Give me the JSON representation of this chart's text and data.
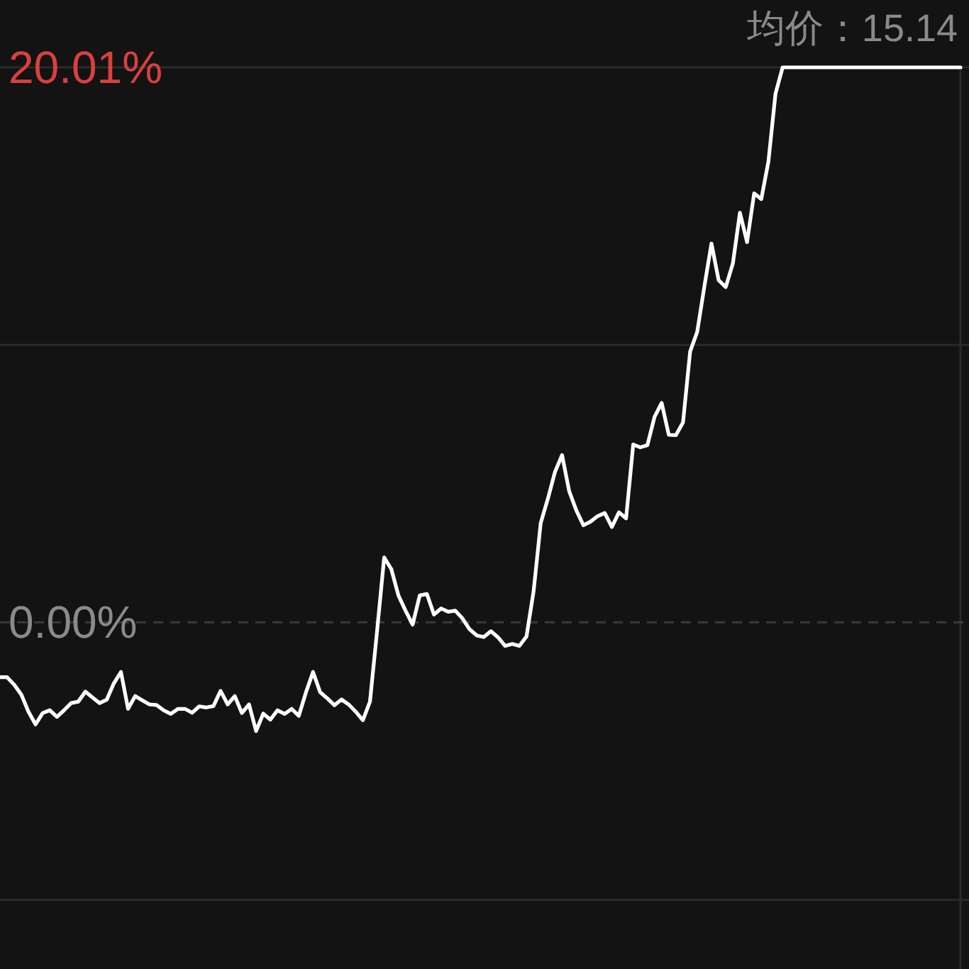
{
  "chart_data": {
    "type": "line",
    "categories": [
      null,
      null,
      null,
      null,
      null,
      null,
      null,
      null,
      null,
      null,
      null,
      null,
      null,
      null,
      null,
      null,
      null,
      null,
      null,
      null,
      null,
      null,
      null,
      null,
      null,
      null,
      null,
      null,
      null,
      null,
      null,
      null,
      null,
      null,
      null,
      null,
      null,
      null,
      null,
      null,
      null,
      null,
      null,
      null,
      null,
      null,
      null,
      null,
      null,
      null,
      null,
      null,
      null,
      null,
      null,
      null,
      null,
      null,
      null,
      null,
      null,
      null,
      null,
      null,
      null,
      null,
      null,
      null,
      null,
      null,
      null,
      null,
      null,
      null,
      null,
      null,
      null,
      null,
      null,
      null,
      null,
      null,
      null,
      null,
      null,
      null,
      null,
      null,
      null,
      null,
      null,
      null,
      null,
      null,
      null,
      null,
      null,
      null,
      null,
      null,
      null,
      null,
      null,
      null,
      null,
      null,
      null,
      null,
      null,
      null,
      null,
      null,
      null,
      null,
      null,
      null,
      null,
      null,
      null,
      null,
      null,
      null,
      null,
      null,
      null,
      null,
      null,
      null,
      null,
      null,
      null,
      null,
      null,
      null,
      null,
      null
    ],
    "series": [
      {
        "color": "#ffffff",
        "values": [
          -1.98,
          -1.98,
          -2.25,
          -2.61,
          -3.22,
          -3.68,
          -3.27,
          -3.17,
          -3.41,
          -3.17,
          -2.91,
          -2.86,
          -2.5,
          -2.71,
          -2.91,
          -2.79,
          -2.2,
          -1.79,
          -3.12,
          -2.66,
          -2.81,
          -2.96,
          -2.98,
          -3.17,
          -3.3,
          -3.12,
          -3.12,
          -3.26,
          -3.03,
          -3.07,
          -3.02,
          -2.47,
          -2.96,
          -2.66,
          -3.27,
          -2.96,
          -3.92,
          -3.29,
          -3.51,
          -3.17,
          -3.3,
          -3.12,
          -3.37,
          -2.53,
          -1.79,
          -2.52,
          -2.74,
          -2.99,
          -2.78,
          -2.96,
          -3.22,
          -3.53,
          -2.86,
          -0.31,
          2.34,
          1.92,
          0.97,
          0.42,
          -0.08,
          0.97,
          1.02,
          0.28,
          0.5,
          0.38,
          0.42,
          0.14,
          -0.25,
          -0.47,
          -0.53,
          -0.32,
          -0.54,
          -0.85,
          -0.78,
          -0.85,
          -0.51,
          1.12,
          3.58,
          4.45,
          5.42,
          6.03,
          4.73,
          4.04,
          3.5,
          3.63,
          3.83,
          3.94,
          3.44,
          3.97,
          3.75,
          6.41,
          6.31,
          6.39,
          7.41,
          7.91,
          6.76,
          6.75,
          7.21,
          9.76,
          10.48,
          12.11,
          13.66,
          12.34,
          12.09,
          12.93,
          14.77,
          13.71,
          15.47,
          15.26,
          16.61,
          19.06,
          20.01,
          20.01,
          20.01,
          20.01,
          20.01,
          20.01,
          20.01,
          20.01,
          20.01,
          20.01,
          20.01,
          20.01,
          20.01,
          20.01,
          20.01,
          20.01,
          20.01,
          20.01,
          20.01,
          20.01,
          20.01,
          20.01,
          20.01,
          20.01,
          20.01,
          20.01
        ]
      }
    ],
    "ylim": [
      -12.5,
      20.01
    ],
    "yticks": [
      {
        "value": 20.01,
        "label": "20.01%"
      },
      {
        "value": 10.005,
        "label": null
      },
      {
        "value": 0,
        "label": "0.00%"
      },
      {
        "value": -10.005,
        "label": null
      }
    ],
    "grid": "y",
    "ref_lines": [
      {
        "axis": "y",
        "value": 0,
        "line_style": "dashed"
      }
    ],
    "annotations": [
      "均价：15.14"
    ]
  }
}
